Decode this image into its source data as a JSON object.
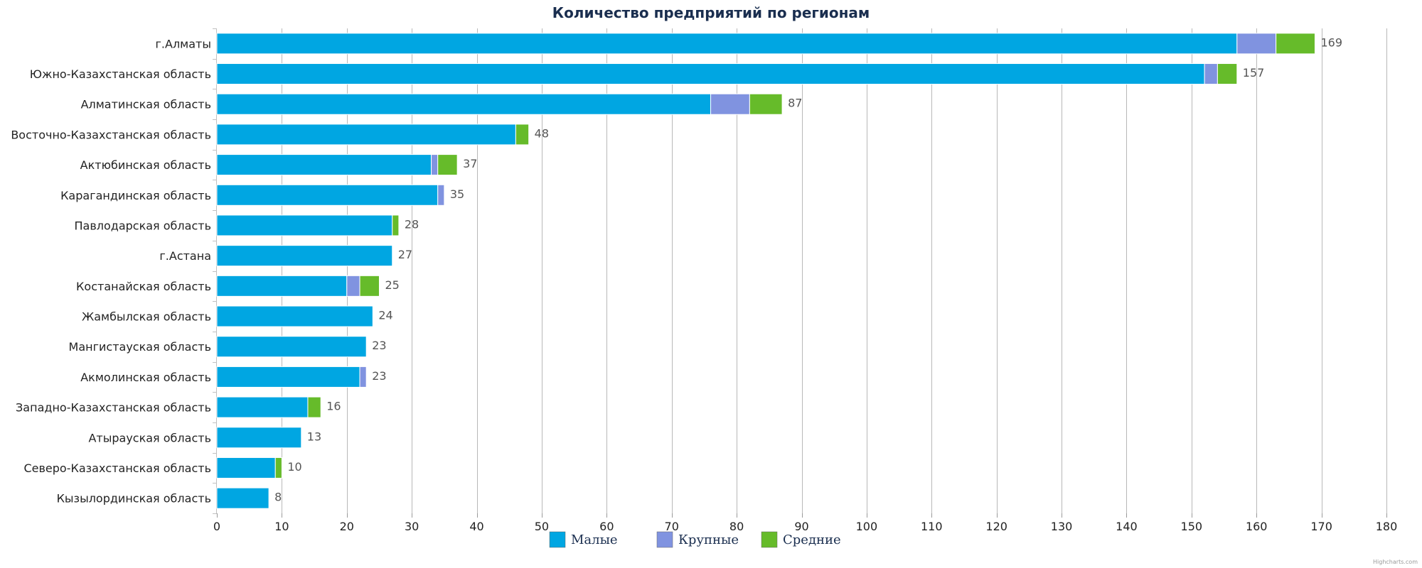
{
  "chart_data": {
    "type": "bar",
    "orientation": "horizontal",
    "stacked": true,
    "title": "Количество предприятий по регионам",
    "categories": [
      "г.Алматы",
      "Южно-Казахстанская область",
      "Алматинская область",
      "Восточно-Казахстанская область",
      "Актюбинская область",
      "Карагандинская область",
      "Павлодарская область",
      "г.Астана",
      "Костанайская область",
      "Жамбылская область",
      "Мангистауская область",
      "Акмолинская область",
      "Западно-Казахстанская область",
      "Атырауская область",
      "Северо-Казахстанская область",
      "Кызылординская область"
    ],
    "series": [
      {
        "name": "Малые",
        "color": "#00a6e2",
        "values": [
          157,
          152,
          76,
          46,
          33,
          34,
          27,
          27,
          20,
          24,
          23,
          22,
          14,
          13,
          9,
          8
        ]
      },
      {
        "name": "Крупные",
        "color": "#8093e0",
        "values": [
          6,
          2,
          6,
          0,
          1,
          1,
          0,
          0,
          2,
          0,
          0,
          1,
          0,
          0,
          0,
          0
        ]
      },
      {
        "name": "Средние",
        "color": "#66bb2a",
        "values": [
          6,
          3,
          5,
          2,
          3,
          0,
          1,
          0,
          3,
          0,
          0,
          0,
          2,
          0,
          1,
          0
        ]
      }
    ],
    "totals": [
      169,
      157,
      87,
      48,
      37,
      35,
      28,
      27,
      25,
      24,
      23,
      23,
      16,
      13,
      10,
      8
    ],
    "xlim": [
      0,
      180
    ],
    "ticks": [
      0,
      10,
      20,
      30,
      40,
      50,
      60,
      70,
      80,
      90,
      100,
      110,
      120,
      130,
      140,
      150,
      160,
      170,
      180
    ],
    "grid": true,
    "legend_position": "bottom-center"
  },
  "credit": "Highcharts.com"
}
